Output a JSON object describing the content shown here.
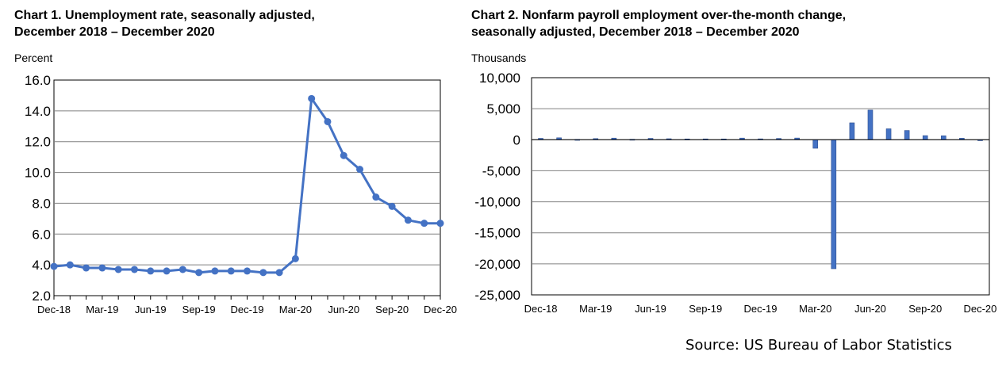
{
  "charts": {
    "left_title": "Chart 1. Unemployment rate, seasonally adjusted,\nDecember 2018 – December 2020",
    "right_title": "Chart 2. Nonfarm payroll employment over-the-month change,\nseasonally adjusted, December 2018 – December 2020",
    "left_unit": "Percent",
    "right_unit": "Thousands",
    "source": "Source: US Bureau of Labor Statistics"
  },
  "chart_data": [
    {
      "type": "line",
      "title": "Chart 1. Unemployment rate, seasonally adjusted, December 2018 – December 2020",
      "ylabel": "Percent",
      "ylim": [
        2.0,
        16.0
      ],
      "yticks": [
        "2.0",
        "4.0",
        "6.0",
        "8.0",
        "10.0",
        "12.0",
        "14.0",
        "16.0"
      ],
      "categories": [
        "Dec-18",
        "Jan-19",
        "Feb-19",
        "Mar-19",
        "Apr-19",
        "May-19",
        "Jun-19",
        "Jul-19",
        "Aug-19",
        "Sep-19",
        "Oct-19",
        "Nov-19",
        "Dec-19",
        "Jan-20",
        "Feb-20",
        "Mar-20",
        "Apr-20",
        "May-20",
        "Jun-20",
        "Jul-20",
        "Aug-20",
        "Sep-20",
        "Oct-20",
        "Nov-20",
        "Dec-20"
      ],
      "tick_labels": [
        "Dec-18",
        "Mar-19",
        "Jun-19",
        "Sep-19",
        "Dec-19",
        "Mar-20",
        "Jun-20",
        "Sep-20",
        "Dec-20"
      ],
      "values": [
        3.9,
        4.0,
        3.8,
        3.8,
        3.7,
        3.7,
        3.6,
        3.6,
        3.7,
        3.5,
        3.6,
        3.6,
        3.6,
        3.5,
        3.5,
        4.4,
        14.8,
        13.3,
        11.1,
        10.2,
        8.4,
        7.8,
        6.9,
        6.7,
        6.7
      ],
      "color": "#4472C4",
      "grid": true
    },
    {
      "type": "bar",
      "title": "Chart 2. Nonfarm payroll employment over-the-month change, seasonally adjusted, December 2018 – December 2020",
      "ylabel": "Thousands",
      "ylim": [
        -25000,
        10000
      ],
      "yticks": [
        "-25,000",
        "-20,000",
        "-15,000",
        "-10,000",
        "-5,000",
        "0",
        "5,000",
        "10,000"
      ],
      "categories": [
        "Dec-18",
        "Jan-19",
        "Feb-19",
        "Mar-19",
        "Apr-19",
        "May-19",
        "Jun-19",
        "Jul-19",
        "Aug-19",
        "Sep-19",
        "Oct-19",
        "Nov-19",
        "Dec-19",
        "Jan-20",
        "Feb-20",
        "Mar-20",
        "Apr-20",
        "May-20",
        "Jun-20",
        "Jul-20",
        "Aug-20",
        "Sep-20",
        "Oct-20",
        "Nov-20",
        "Dec-20"
      ],
      "tick_labels": [
        "Dec-18",
        "Mar-19",
        "Jun-19",
        "Sep-19",
        "Dec-19",
        "Mar-20",
        "Jun-20",
        "Sep-20",
        "Dec-20"
      ],
      "values": [
        227,
        312,
        56,
        189,
        263,
        75,
        224,
        164,
        130,
        136,
        128,
        266,
        145,
        214,
        275,
        -1373,
        -20787,
        2725,
        4781,
        1761,
        1493,
        661,
        638,
        245,
        -140
      ],
      "color": "#4472C4",
      "grid": true
    }
  ]
}
